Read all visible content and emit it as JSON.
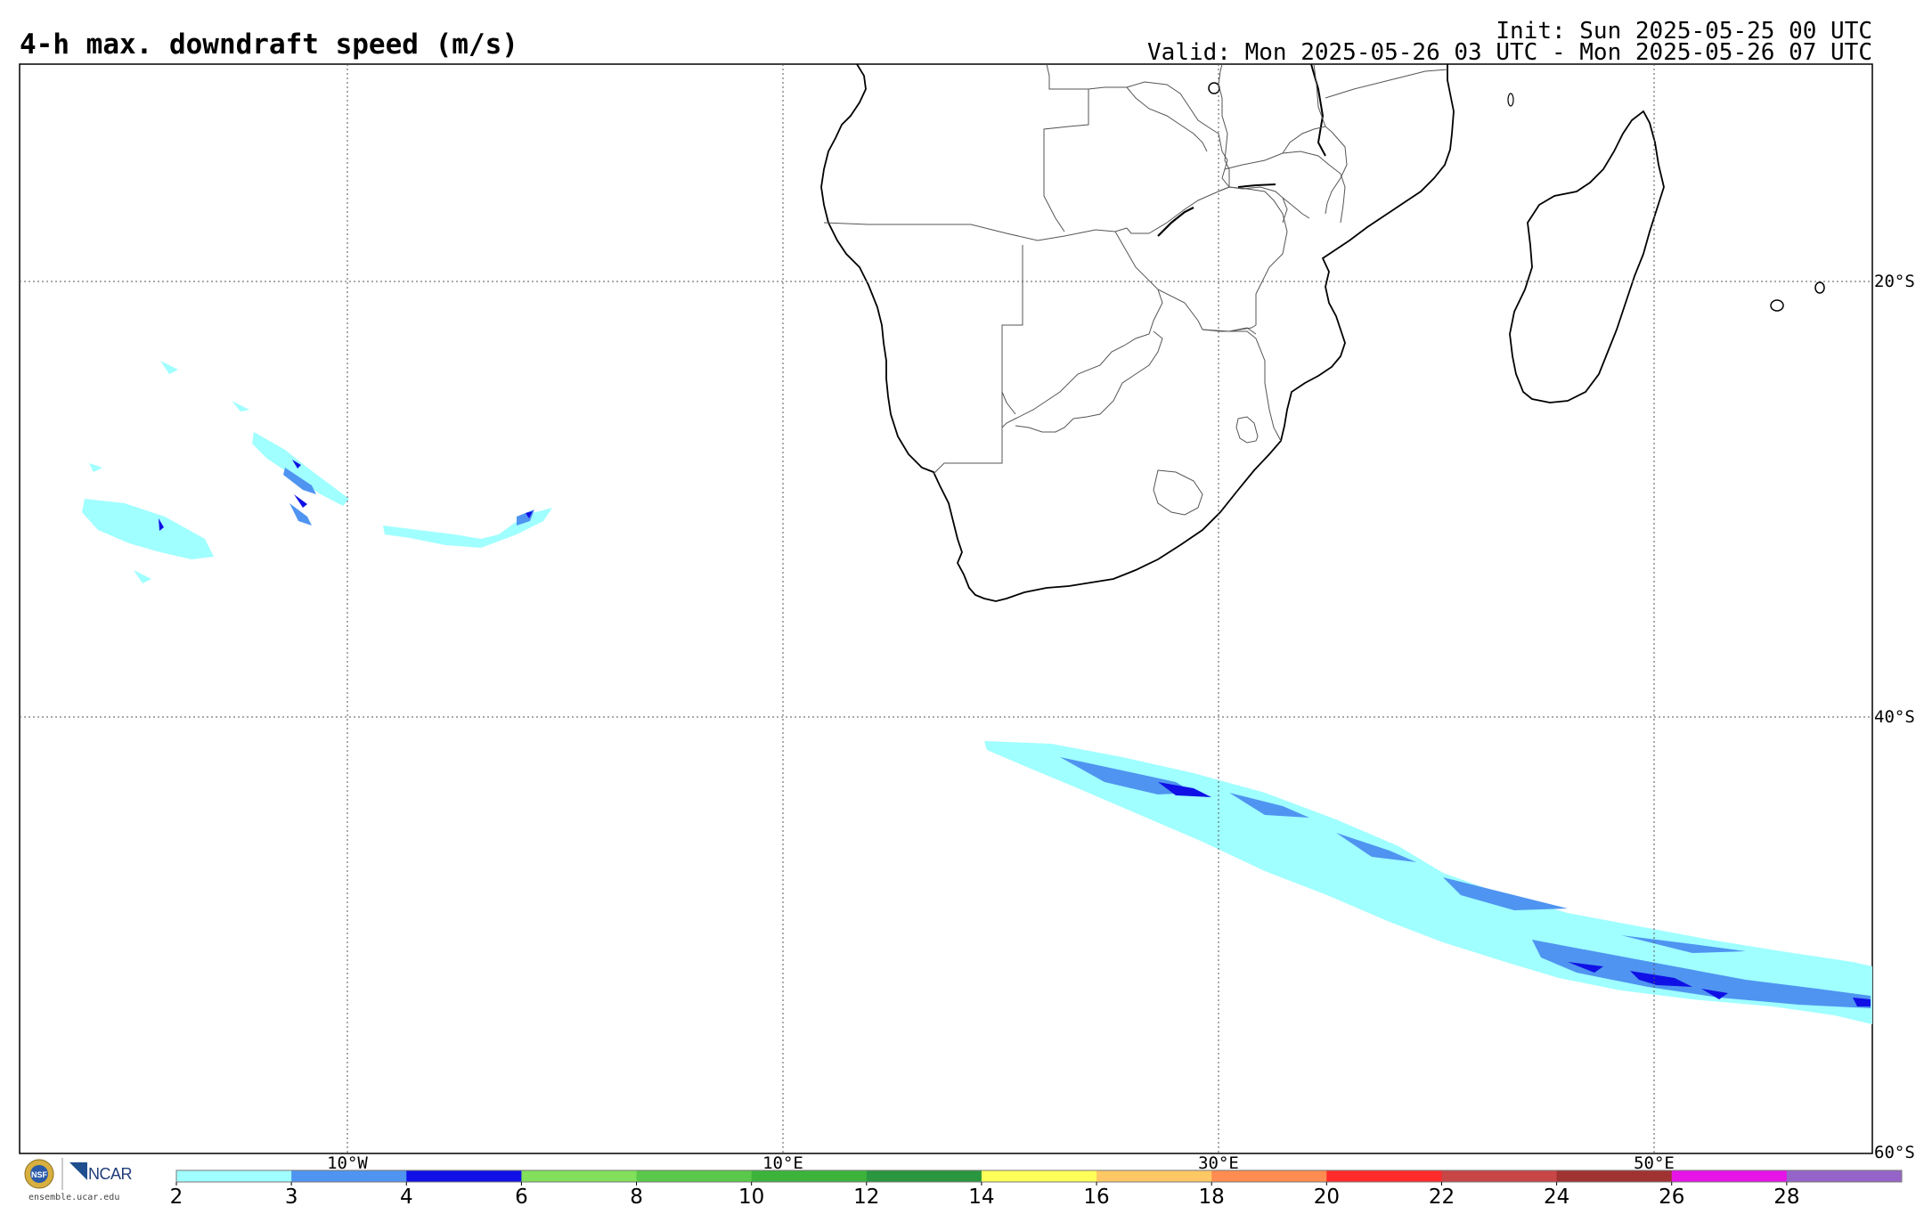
{
  "header": {
    "title": "4-h max. downdraft speed (m/s)",
    "init": "Init: Sun 2025-05-25 00 UTC",
    "valid": "Valid: Mon 2025-05-26 03 UTC - Mon 2025-05-26 07 UTC"
  },
  "map": {
    "projection": "cylindrical",
    "longitude_range": [
      -25,
      60
    ],
    "latitude_range": [
      -60,
      -10
    ],
    "gridlines": {
      "longitudes": [
        -10,
        10,
        30,
        50
      ],
      "latitudes": [
        -20,
        -40,
        -60
      ],
      "lon_labels": [
        "10°W",
        "10°E",
        "30°E",
        "50°E"
      ],
      "lat_labels": [
        "20°S",
        "40°S",
        "60°S"
      ]
    },
    "regions_shown": [
      "Southern Africa",
      "Madagascar",
      "South Atlantic Ocean",
      "Southern Indian Ocean"
    ]
  },
  "colorbar": {
    "ticks": [
      "2",
      "3",
      "4",
      "6",
      "8",
      "10",
      "12",
      "14",
      "16",
      "18",
      "20",
      "22",
      "24",
      "26",
      "28"
    ],
    "colors": [
      "#a0ffff",
      "#4f94f0",
      "#1010e6",
      "#82e05a",
      "#5ac84a",
      "#3cb43c",
      "#2a963f",
      "#ffff5a",
      "#ffc864",
      "#ff8c50",
      "#ff2a2a",
      "#c84646",
      "#a03232",
      "#e614e6",
      "#9664c8"
    ]
  },
  "branding": {
    "org": "NCAR",
    "url": "ensemble.ucar.edu"
  }
}
